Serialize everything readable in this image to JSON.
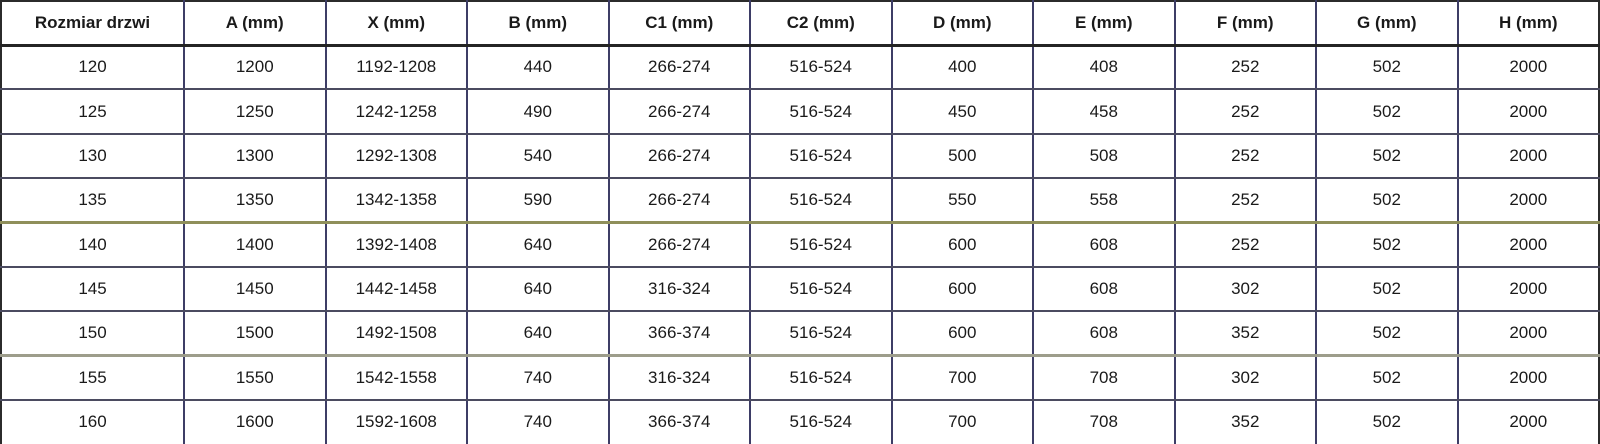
{
  "table": {
    "title": "door-size-specification-table",
    "headers": [
      "Rozmiar drzwi",
      "A (mm)",
      "X (mm)",
      "B (mm)",
      "C1 (mm)",
      "C2 (mm)",
      "D (mm)",
      "E (mm)",
      "F (mm)",
      "G (mm)",
      "H (mm)"
    ],
    "rows": [
      [
        "120",
        "1200",
        "1192-1208",
        "440",
        "266-274",
        "516-524",
        "400",
        "408",
        "252",
        "502",
        "2000"
      ],
      [
        "125",
        "1250",
        "1242-1258",
        "490",
        "266-274",
        "516-524",
        "450",
        "458",
        "252",
        "502",
        "2000"
      ],
      [
        "130",
        "1300",
        "1292-1308",
        "540",
        "266-274",
        "516-524",
        "500",
        "508",
        "252",
        "502",
        "2000"
      ],
      [
        "135",
        "1350",
        "1342-1358",
        "590",
        "266-274",
        "516-524",
        "550",
        "558",
        "252",
        "502",
        "2000"
      ],
      [
        "140",
        "1400",
        "1392-1408",
        "640",
        "266-274",
        "516-524",
        "600",
        "608",
        "252",
        "502",
        "2000"
      ],
      [
        "145",
        "1450",
        "1442-1458",
        "640",
        "316-324",
        "516-524",
        "600",
        "608",
        "302",
        "502",
        "2000"
      ],
      [
        "150",
        "1500",
        "1492-1508",
        "640",
        "366-374",
        "516-524",
        "600",
        "608",
        "352",
        "502",
        "2000"
      ],
      [
        "155",
        "1550",
        "1542-1558",
        "740",
        "316-324",
        "516-524",
        "700",
        "708",
        "302",
        "502",
        "2000"
      ],
      [
        "160",
        "1600",
        "1592-1608",
        "740",
        "366-374",
        "516-524",
        "700",
        "708",
        "352",
        "502",
        "2000"
      ]
    ]
  },
  "colors": {
    "text": "#1a1a1a",
    "background": "#ffffff",
    "border_outer": "#2b2b2b",
    "border_vertical": "#3d3d66",
    "border_row": "#4b4b60",
    "border_header": "#242424",
    "divider_olive": "#8f8f5a",
    "divider_tan": "#9d9d8b"
  }
}
